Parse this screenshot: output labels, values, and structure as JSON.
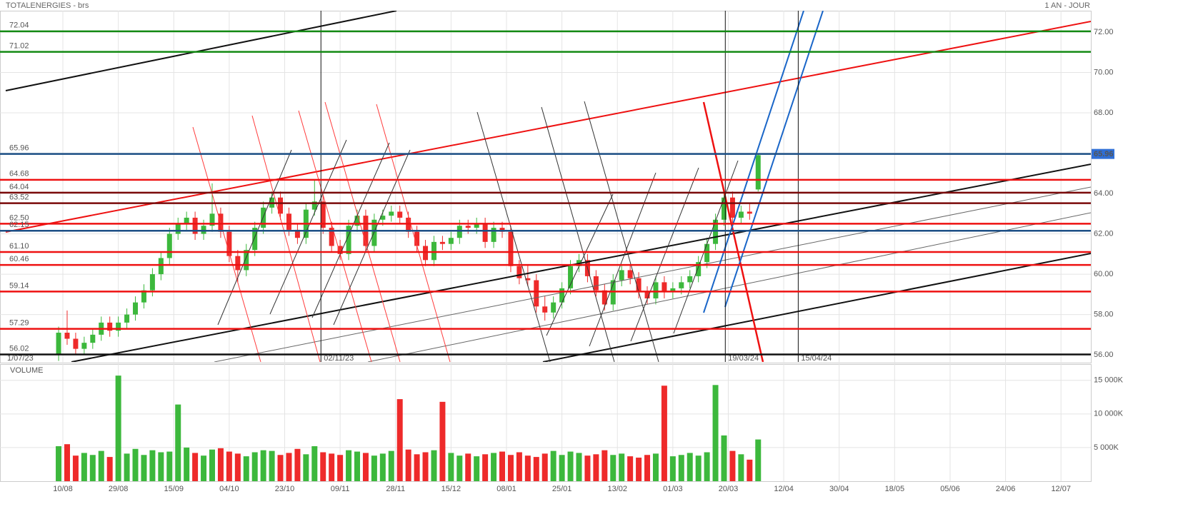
{
  "header": {
    "title": "TOTALENERGIES - brs",
    "period": "1 AN - JOUR"
  },
  "chart_data": {
    "type": "candlestick",
    "x": [
      -1,
      1,
      3,
      5,
      7,
      9,
      11,
      13,
      15,
      17,
      19,
      21,
      23,
      25,
      27,
      29,
      31,
      33,
      35,
      37,
      39,
      41,
      43,
      45,
      47,
      49,
      51,
      53,
      55,
      57,
      59,
      61,
      63,
      65,
      67,
      69,
      71,
      73,
      75,
      77,
      79,
      81,
      83,
      85,
      87,
      89,
      91,
      93,
      95,
      97,
      99,
      101,
      103,
      105,
      107,
      109,
      111,
      113,
      115,
      117,
      119,
      121,
      123,
      125,
      127,
      129,
      131,
      133,
      135,
      137,
      139,
      141,
      143,
      145,
      147,
      149,
      151,
      153,
      155,
      157,
      159,
      161,
      163
    ],
    "open": [
      56.0,
      57.1,
      56.8,
      56.3,
      56.6,
      57.0,
      57.6,
      57.2,
      57.6,
      58.0,
      58.6,
      59.2,
      60.0,
      60.8,
      62.0,
      62.5,
      62.8,
      62.0,
      62.4,
      63.0,
      62.1,
      60.9,
      60.2,
      61.2,
      62.3,
      63.3,
      63.8,
      63.0,
      62.2,
      61.8,
      63.2,
      63.6,
      62.3,
      61.4,
      61.0,
      62.4,
      62.9,
      61.4,
      62.7,
      62.9,
      63.1,
      62.8,
      62.1,
      61.4,
      60.7,
      61.6,
      61.5,
      61.8,
      62.4,
      62.3,
      62.5,
      61.6,
      62.3,
      62.1,
      60.4,
      59.8,
      59.7,
      58.4,
      58.1,
      58.6,
      59.3,
      60.4,
      60.7,
      59.9,
      59.2,
      58.5,
      59.7,
      60.2,
      59.8,
      59.1,
      58.8,
      59.6,
      59.1,
      59.3,
      59.6,
      59.9,
      60.6,
      61.5,
      62.7,
      63.8,
      62.8,
      63.1,
      64.2
    ],
    "high": [
      57.4,
      58.2,
      57.1,
      56.9,
      57.3,
      57.9,
      57.9,
      57.9,
      58.3,
      58.9,
      59.5,
      60.3,
      61.1,
      62.3,
      62.8,
      63.1,
      63.1,
      62.7,
      64.5,
      63.3,
      62.4,
      61.2,
      61.5,
      62.6,
      63.6,
      64.1,
      64.1,
      63.3,
      62.5,
      63.5,
      64.7,
      63.9,
      62.6,
      61.7,
      62.7,
      63.2,
      63.2,
      63.0,
      63.2,
      63.4,
      63.4,
      63.1,
      62.4,
      61.7,
      61.9,
      61.9,
      62.1,
      62.7,
      62.7,
      62.8,
      62.8,
      62.6,
      62.6,
      62.4,
      60.7,
      60.5,
      60.0,
      58.9,
      58.9,
      59.6,
      60.7,
      61.0,
      61.0,
      60.2,
      59.5,
      60.0,
      60.5,
      60.5,
      60.1,
      59.4,
      59.9,
      59.9,
      59.6,
      59.9,
      60.2,
      60.9,
      61.8,
      63.0,
      64.1,
      64.1,
      63.4,
      63.5,
      66.0
    ],
    "low": [
      55.7,
      56.5,
      56.0,
      56.0,
      56.3,
      56.7,
      56.9,
      56.9,
      57.3,
      57.7,
      58.3,
      58.9,
      59.7,
      60.5,
      61.7,
      62.2,
      61.7,
      61.7,
      62.1,
      61.8,
      60.6,
      59.6,
      59.9,
      60.9,
      62.0,
      63.0,
      62.7,
      61.9,
      61.5,
      61.5,
      62.9,
      62.0,
      61.1,
      60.7,
      60.7,
      62.1,
      61.1,
      61.1,
      62.4,
      62.6,
      62.5,
      61.8,
      61.1,
      60.4,
      60.4,
      61.2,
      61.2,
      61.5,
      62.0,
      62.0,
      61.3,
      61.3,
      61.8,
      60.1,
      59.5,
      59.4,
      58.1,
      57.7,
      57.8,
      58.3,
      59.0,
      60.1,
      59.6,
      58.9,
      58.2,
      58.2,
      59.4,
      59.5,
      58.8,
      58.5,
      58.5,
      58.8,
      58.8,
      59.0,
      59.3,
      59.6,
      60.3,
      61.2,
      62.4,
      62.5,
      62.5,
      62.7,
      64.1
    ],
    "close": [
      57.1,
      56.8,
      56.3,
      56.6,
      57.0,
      57.6,
      57.2,
      57.6,
      58.0,
      58.6,
      59.2,
      60.0,
      60.8,
      62.0,
      62.5,
      62.8,
      62.0,
      62.4,
      63.0,
      62.1,
      60.9,
      60.2,
      61.2,
      62.3,
      63.3,
      63.8,
      63.0,
      62.2,
      61.8,
      63.2,
      63.6,
      62.3,
      61.4,
      61.0,
      62.4,
      62.9,
      61.4,
      62.7,
      62.9,
      63.1,
      62.8,
      62.1,
      61.4,
      60.7,
      61.6,
      61.5,
      61.8,
      62.4,
      62.3,
      62.5,
      61.6,
      62.3,
      62.1,
      60.4,
      59.8,
      59.7,
      58.4,
      58.1,
      58.6,
      59.3,
      60.4,
      60.7,
      59.9,
      59.2,
      58.5,
      59.7,
      60.2,
      59.8,
      59.1,
      58.8,
      59.6,
      59.1,
      59.3,
      59.6,
      59.9,
      60.6,
      61.5,
      62.7,
      63.8,
      62.8,
      63.1,
      63.0,
      65.9
    ],
    "up_color": "#3cb83c",
    "down_color": "#ee2a2a",
    "xlim": [
      -14.74,
      241.0
    ],
    "ylim": [
      55.65,
      73.06
    ],
    "grid": true,
    "xticks": [
      {
        "value": 0,
        "label": "10/08"
      },
      {
        "value": 13,
        "label": "29/08"
      },
      {
        "value": 26,
        "label": "15/09"
      },
      {
        "value": 39,
        "label": "04/10"
      },
      {
        "value": 52,
        "label": "23/10"
      },
      {
        "value": 65,
        "label": "09/11"
      },
      {
        "value": 78,
        "label": "28/11"
      },
      {
        "value": 91,
        "label": "15/12"
      },
      {
        "value": 104,
        "label": "08/01"
      },
      {
        "value": 117,
        "label": "25/01"
      },
      {
        "value": 130,
        "label": "13/02"
      },
      {
        "value": 143,
        "label": "01/03"
      },
      {
        "value": 156,
        "label": "20/03"
      },
      {
        "value": 169,
        "label": "12/04"
      },
      {
        "value": 182,
        "label": "30/04"
      },
      {
        "value": 195,
        "label": "18/05"
      },
      {
        "value": 208,
        "label": "05/06"
      },
      {
        "value": 221,
        "label": "24/06"
      },
      {
        "value": 234,
        "label": "12/07"
      }
    ],
    "yticks": [
      {
        "value": 56,
        "label": "56.00"
      },
      {
        "value": 58,
        "label": "58.00"
      },
      {
        "value": 60,
        "label": "60.00"
      },
      {
        "value": 62,
        "label": "62.00"
      },
      {
        "value": 64,
        "label": "64.00"
      },
      {
        "value": 66,
        "label": "66.00"
      },
      {
        "value": 68,
        "label": "68.00"
      },
      {
        "value": 70,
        "label": "70.00"
      },
      {
        "value": 72,
        "label": "72.00"
      }
    ],
    "levels": [
      {
        "value": 72.04,
        "color": "#138a13"
      },
      {
        "value": 71.02,
        "color": "#138a13"
      },
      {
        "value": 65.96,
        "color": "#1c4f86"
      },
      {
        "value": 64.68,
        "color": "#ee1111"
      },
      {
        "value": 64.04,
        "color": "#7a0a0a"
      },
      {
        "value": 63.52,
        "color": "#7a0a0a"
      },
      {
        "value": 62.5,
        "label": "62.50",
        "color": "#ee1111"
      },
      {
        "value": 62.15,
        "color": "#1c4f86"
      },
      {
        "value": 61.1,
        "label": "61.10",
        "color": "#ee1111"
      },
      {
        "value": 60.46,
        "color": "#ee1111"
      },
      {
        "value": 59.14,
        "color": "#ee1111"
      },
      {
        "value": 57.29,
        "color": "#ee1111"
      },
      {
        "value": 56.02,
        "color": "#111111"
      }
    ],
    "markers": [
      {
        "x": 60.5,
        "label": "02/11/23"
      },
      {
        "x": 155.3,
        "label": "19/03/24"
      },
      {
        "x": 172.4,
        "label": "15/04/24"
      }
    ],
    "start_label": "1/07/23",
    "last_price": 65.96,
    "last_price_color": "#2f6fd6",
    "volume": {
      "title": "VOLUME",
      "title_color": "#2fae2f",
      "values": [
        5200,
        5500,
        3800,
        4200,
        3900,
        4500,
        3600,
        15700,
        4100,
        4800,
        3900,
        4600,
        4300,
        4400,
        11400,
        5000,
        4200,
        3800,
        4700,
        4900,
        4400,
        4100,
        3700,
        4300,
        4600,
        4500,
        3900,
        4200,
        4800,
        4000,
        5200,
        4300,
        4100,
        3900,
        4600,
        4400,
        4200,
        3800,
        4100,
        4500,
        12200,
        4700,
        4000,
        4300,
        4600,
        11800,
        4200,
        3800,
        4100,
        3700,
        4000,
        4200,
        4400,
        3900,
        4300,
        3800,
        3600,
        4100,
        4500,
        3900,
        4400,
        4200,
        3800,
        4000,
        4600,
        3900,
        4100,
        3700,
        3500,
        3900,
        4100,
        14200,
        3700,
        3900,
        4200,
        3800,
        4300,
        14300,
        6800,
        4500,
        4000,
        3200,
        6200
      ],
      "ylim": [
        0,
        17200
      ],
      "yticks": [
        {
          "value": 5000,
          "label": "5 000K"
        },
        {
          "value": 10000,
          "label": "10 000K"
        },
        {
          "value": 15000,
          "label": "15 000K"
        }
      ]
    }
  }
}
